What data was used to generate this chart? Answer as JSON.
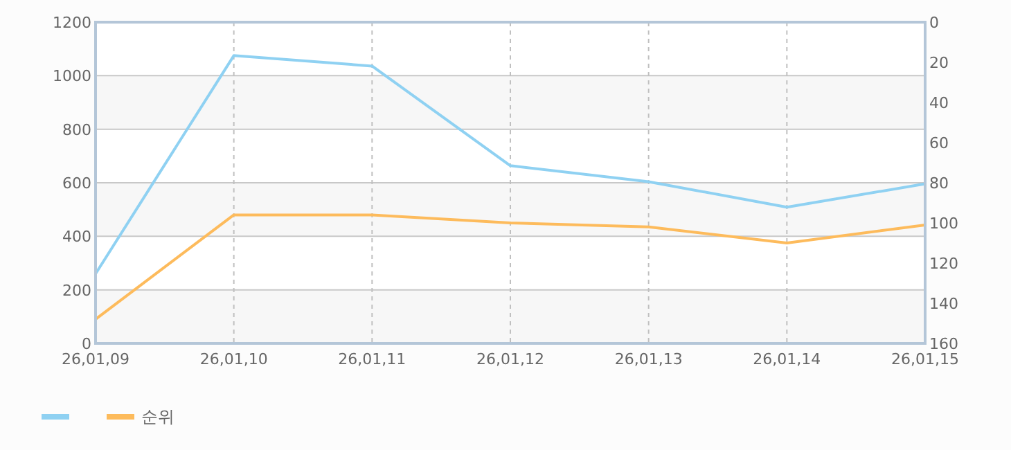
{
  "chart_data": {
    "type": "line",
    "categories": [
      "26,01,09",
      "26,01,10",
      "26,01,11",
      "26,01,12",
      "26,01,13",
      "26,01,14",
      "26,01,15"
    ],
    "series": [
      {
        "color": "#8fd1f2",
        "values": [
          260,
          1075,
          1036,
          664,
          604,
          509,
          596
        ]
      },
      {
        "name": "순위",
        "color": "#fdbb5c",
        "axis": "y2",
        "values": [
          148,
          96,
          96,
          100,
          102,
          110,
          101
        ]
      }
    ],
    "ylim": [
      0,
      1200
    ],
    "yticks": [
      0,
      200,
      400,
      600,
      800,
      1000,
      1200
    ],
    "y2lim": [
      160,
      0
    ],
    "y2ticks": [
      0,
      20,
      40,
      60,
      80,
      100,
      120,
      140,
      160
    ],
    "grid": true,
    "legend": "bottom left",
    "marker": "none",
    "line_style": "solid"
  }
}
